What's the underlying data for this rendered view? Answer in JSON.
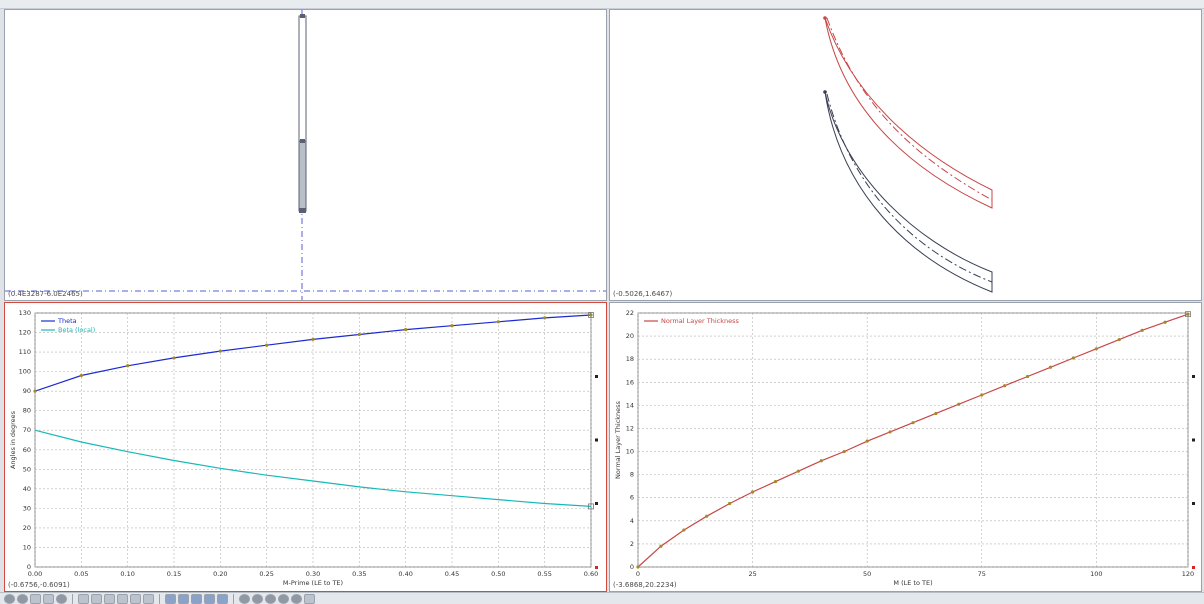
{
  "views": {
    "meridional": {
      "coord_readout": "(0.4E3287-6.0E2465)"
    },
    "blade_to_blade": {
      "coord_readout": "(-0.5026,1.6467)"
    },
    "angles": {
      "coord_readout": "(-0.6756,-0.6091)"
    },
    "thickness": {
      "coord_readout": "(-3.6868,20.2234)"
    }
  },
  "colors": {
    "theta": "#1c2bd0",
    "beta": "#19b8b8",
    "markers": "#a08a2a",
    "blade_top": "#c84646",
    "blade_bottom": "#3a3f55"
  },
  "chart_data": [
    {
      "type": "line",
      "title": "",
      "xlabel": "M-Prime (LE to TE)",
      "ylabel": "Angles in degrees",
      "xlim": [
        0.0,
        0.6
      ],
      "ylim": [
        0,
        130
      ],
      "xticks": [
        "0.00",
        "0.05",
        "0.10",
        "0.15",
        "0.20",
        "0.25",
        "0.30",
        "0.35",
        "0.40",
        "0.45",
        "0.50",
        "0.55",
        "0.60"
      ],
      "yticks": [
        "0",
        "10",
        "20",
        "30",
        "40",
        "50",
        "60",
        "70",
        "80",
        "90",
        "100",
        "110",
        "120",
        "130"
      ],
      "grid": true,
      "legend": "top-left",
      "series": [
        {
          "name": "Theta",
          "x": [
            0.0,
            0.05,
            0.1,
            0.15,
            0.2,
            0.25,
            0.3,
            0.35,
            0.4,
            0.45,
            0.5,
            0.55,
            0.6
          ],
          "values": [
            90,
            98,
            103,
            107,
            110.5,
            113.5,
            116.5,
            119,
            121.5,
            123.5,
            125.5,
            127.5,
            129
          ]
        },
        {
          "name": "Beta (local)",
          "x": [
            0.0,
            0.05,
            0.1,
            0.15,
            0.2,
            0.25,
            0.3,
            0.35,
            0.4,
            0.45,
            0.5,
            0.55,
            0.6
          ],
          "values": [
            70,
            64,
            59,
            54.5,
            50.5,
            47,
            44,
            41,
            38.5,
            36.5,
            34.5,
            32.5,
            31
          ]
        }
      ]
    },
    {
      "type": "line",
      "title": "",
      "xlabel": "M (LE to TE)",
      "ylabel": "Normal Layer Thickness",
      "xlim": [
        0,
        120
      ],
      "ylim": [
        0,
        22
      ],
      "xticks": [
        "0",
        "25",
        "50",
        "75",
        "100",
        "120"
      ],
      "yticks": [
        "0",
        "2",
        "4",
        "6",
        "8",
        "10",
        "12",
        "14",
        "16",
        "18",
        "20",
        "22"
      ],
      "grid": true,
      "legend": "top-left",
      "series": [
        {
          "name": "Normal Layer Thickness",
          "x": [
            0,
            5,
            10,
            15,
            20,
            25,
            30,
            35,
            40,
            45,
            50,
            55,
            60,
            65,
            70,
            75,
            80,
            85,
            90,
            95,
            100,
            105,
            110,
            115,
            120
          ],
          "values": [
            0,
            1.8,
            3.2,
            4.4,
            5.5,
            6.5,
            7.4,
            8.3,
            9.2,
            10.0,
            10.9,
            11.7,
            12.5,
            13.3,
            14.1,
            14.9,
            15.7,
            16.5,
            17.3,
            18.1,
            18.9,
            19.7,
            20.5,
            21.2,
            21.9
          ]
        }
      ]
    }
  ]
}
